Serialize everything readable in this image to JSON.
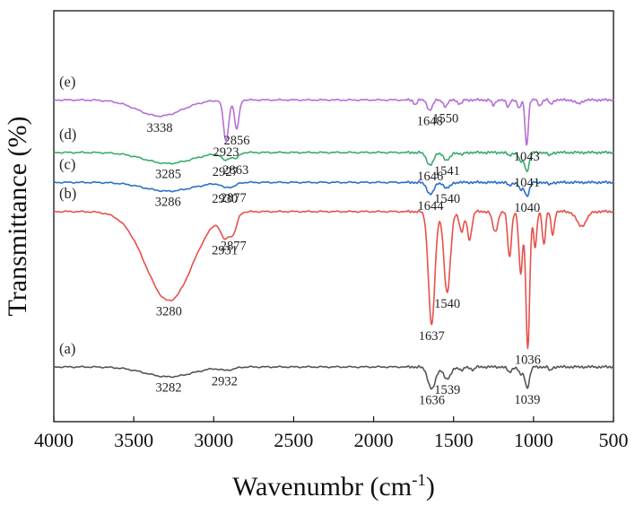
{
  "chart_data": {
    "type": "line",
    "title": "",
    "xlabel": "Wavenumbr (cm",
    "xlabel_sup": "-1",
    "xlabel_close": ")",
    "ylabel": "Transmittance (%)",
    "xlim": [
      4000,
      500
    ],
    "x_reversed": true,
    "yticks_shown": false,
    "x_ticks": [
      4000,
      3500,
      3000,
      2500,
      2000,
      1500,
      1000,
      500
    ],
    "x_tick_labels": [
      "4000",
      "3500",
      "3000",
      "2500",
      "2000",
      "1500",
      "1000",
      "500"
    ],
    "series": [
      {
        "name": "(a)",
        "color": "#555555",
        "baseline": 0.0,
        "bands": [
          {
            "c": 3282,
            "d": 0.135,
            "w": 150
          },
          {
            "c": 2932,
            "d": 0.035,
            "w": 30
          },
          {
            "c": 2877,
            "d": 0.02,
            "w": 25
          },
          {
            "c": 1636,
            "d": 0.3,
            "w": 24
          },
          {
            "c": 1539,
            "d": 0.17,
            "w": 22
          },
          {
            "c": 1450,
            "d": 0.05,
            "w": 14
          },
          {
            "c": 1380,
            "d": 0.04,
            "w": 12
          },
          {
            "c": 1150,
            "d": 0.07,
            "w": 14
          },
          {
            "c": 1080,
            "d": 0.1,
            "w": 14
          },
          {
            "c": 1039,
            "d": 0.28,
            "w": 14
          },
          {
            "c": 895,
            "d": 0.05,
            "w": 10
          }
        ],
        "peaks": [
          {
            "x": 3282,
            "label": "3282"
          },
          {
            "x": 2932,
            "label": "2932"
          },
          {
            "x": 1636,
            "label": "1636"
          },
          {
            "x": 1539,
            "label": "1539"
          },
          {
            "x": 1039,
            "label": "1039"
          }
        ]
      },
      {
        "name": "(b)",
        "color": "#e8504a",
        "baseline": 2.13,
        "bands": [
          {
            "c": 3280,
            "d": 1.22,
            "w": 145
          },
          {
            "c": 2931,
            "d": 0.3,
            "w": 26
          },
          {
            "c": 2877,
            "d": 0.26,
            "w": 22
          },
          {
            "c": 1637,
            "d": 1.55,
            "w": 20
          },
          {
            "c": 1540,
            "d": 1.12,
            "w": 20
          },
          {
            "c": 1450,
            "d": 0.28,
            "w": 14
          },
          {
            "c": 1400,
            "d": 0.38,
            "w": 14
          },
          {
            "c": 1240,
            "d": 0.28,
            "w": 16
          },
          {
            "c": 1150,
            "d": 0.62,
            "w": 12
          },
          {
            "c": 1080,
            "d": 0.85,
            "w": 12
          },
          {
            "c": 1036,
            "d": 1.86,
            "w": 12
          },
          {
            "c": 990,
            "d": 0.5,
            "w": 10
          },
          {
            "c": 935,
            "d": 0.45,
            "w": 10
          },
          {
            "c": 880,
            "d": 0.32,
            "w": 10
          },
          {
            "c": 700,
            "d": 0.2,
            "w": 30
          }
        ],
        "peaks": [
          {
            "x": 3280,
            "label": "3280"
          },
          {
            "x": 2931,
            "label": "2931"
          },
          {
            "x": 2877,
            "label": "2877"
          },
          {
            "x": 1637,
            "label": "1637"
          },
          {
            "x": 1540,
            "label": "1540"
          },
          {
            "x": 1036,
            "label": "1036"
          }
        ]
      },
      {
        "name": "(c)",
        "color": "#2a70c8",
        "baseline": 2.53,
        "bands": [
          {
            "c": 3286,
            "d": 0.12,
            "w": 150
          },
          {
            "c": 2930,
            "d": 0.06,
            "w": 25
          },
          {
            "c": 2877,
            "d": 0.05,
            "w": 22
          },
          {
            "c": 1644,
            "d": 0.16,
            "w": 22
          },
          {
            "c": 1540,
            "d": 0.08,
            "w": 20
          },
          {
            "c": 1150,
            "d": 0.04,
            "w": 14
          },
          {
            "c": 1080,
            "d": 0.1,
            "w": 14
          },
          {
            "c": 1040,
            "d": 0.18,
            "w": 14
          },
          {
            "c": 900,
            "d": 0.03,
            "w": 12
          }
        ],
        "peaks": [
          {
            "x": 3286,
            "label": "3286"
          },
          {
            "x": 2930,
            "label": "2930"
          },
          {
            "x": 2877,
            "label": "2877"
          },
          {
            "x": 1644,
            "label": "1644"
          },
          {
            "x": 1540,
            "label": "1540"
          },
          {
            "x": 1040,
            "label": "1040"
          }
        ]
      },
      {
        "name": "(d)",
        "color": "#3aaa6c",
        "baseline": 2.94,
        "bands": [
          {
            "c": 3285,
            "d": 0.15,
            "w": 150
          },
          {
            "c": 2927,
            "d": 0.1,
            "w": 24
          },
          {
            "c": 2863,
            "d": 0.08,
            "w": 20
          },
          {
            "c": 1646,
            "d": 0.17,
            "w": 22
          },
          {
            "c": 1541,
            "d": 0.11,
            "w": 20
          },
          {
            "c": 1450,
            "d": 0.03,
            "w": 14
          },
          {
            "c": 1150,
            "d": 0.04,
            "w": 14
          },
          {
            "c": 1080,
            "d": 0.12,
            "w": 14
          },
          {
            "c": 1041,
            "d": 0.25,
            "w": 14
          },
          {
            "c": 900,
            "d": 0.04,
            "w": 12
          }
        ],
        "peaks": [
          {
            "x": 3285,
            "label": "3285"
          },
          {
            "x": 2927,
            "label": "2927"
          },
          {
            "x": 2863,
            "label": "2863"
          },
          {
            "x": 1646,
            "label": "1646"
          },
          {
            "x": 1541,
            "label": "1541"
          },
          {
            "x": 1041,
            "label": "1041"
          }
        ]
      },
      {
        "name": "(e)",
        "color": "#b46ed6",
        "baseline": 3.66,
        "bands": [
          {
            "c": 3338,
            "d": 0.22,
            "w": 140
          },
          {
            "c": 2923,
            "d": 0.56,
            "w": 16
          },
          {
            "c": 2856,
            "d": 0.4,
            "w": 14
          },
          {
            "c": 1740,
            "d": 0.06,
            "w": 10
          },
          {
            "c": 1648,
            "d": 0.14,
            "w": 16
          },
          {
            "c": 1550,
            "d": 0.09,
            "w": 14
          },
          {
            "c": 1460,
            "d": 0.06,
            "w": 12
          },
          {
            "c": 1250,
            "d": 0.08,
            "w": 10
          },
          {
            "c": 1160,
            "d": 0.1,
            "w": 10
          },
          {
            "c": 1090,
            "d": 0.12,
            "w": 10
          },
          {
            "c": 1043,
            "d": 0.62,
            "w": 10
          },
          {
            "c": 960,
            "d": 0.08,
            "w": 10
          },
          {
            "c": 890,
            "d": 0.06,
            "w": 10
          },
          {
            "c": 720,
            "d": 0.05,
            "w": 20
          }
        ],
        "peaks": [
          {
            "x": 3338,
            "label": "3338"
          },
          {
            "x": 2923,
            "label": "2923"
          },
          {
            "x": 2856,
            "label": "2856"
          },
          {
            "x": 1648,
            "label": "1648"
          },
          {
            "x": 1550,
            "label": "1550"
          },
          {
            "x": 1043,
            "label": "1043"
          }
        ]
      }
    ]
  }
}
